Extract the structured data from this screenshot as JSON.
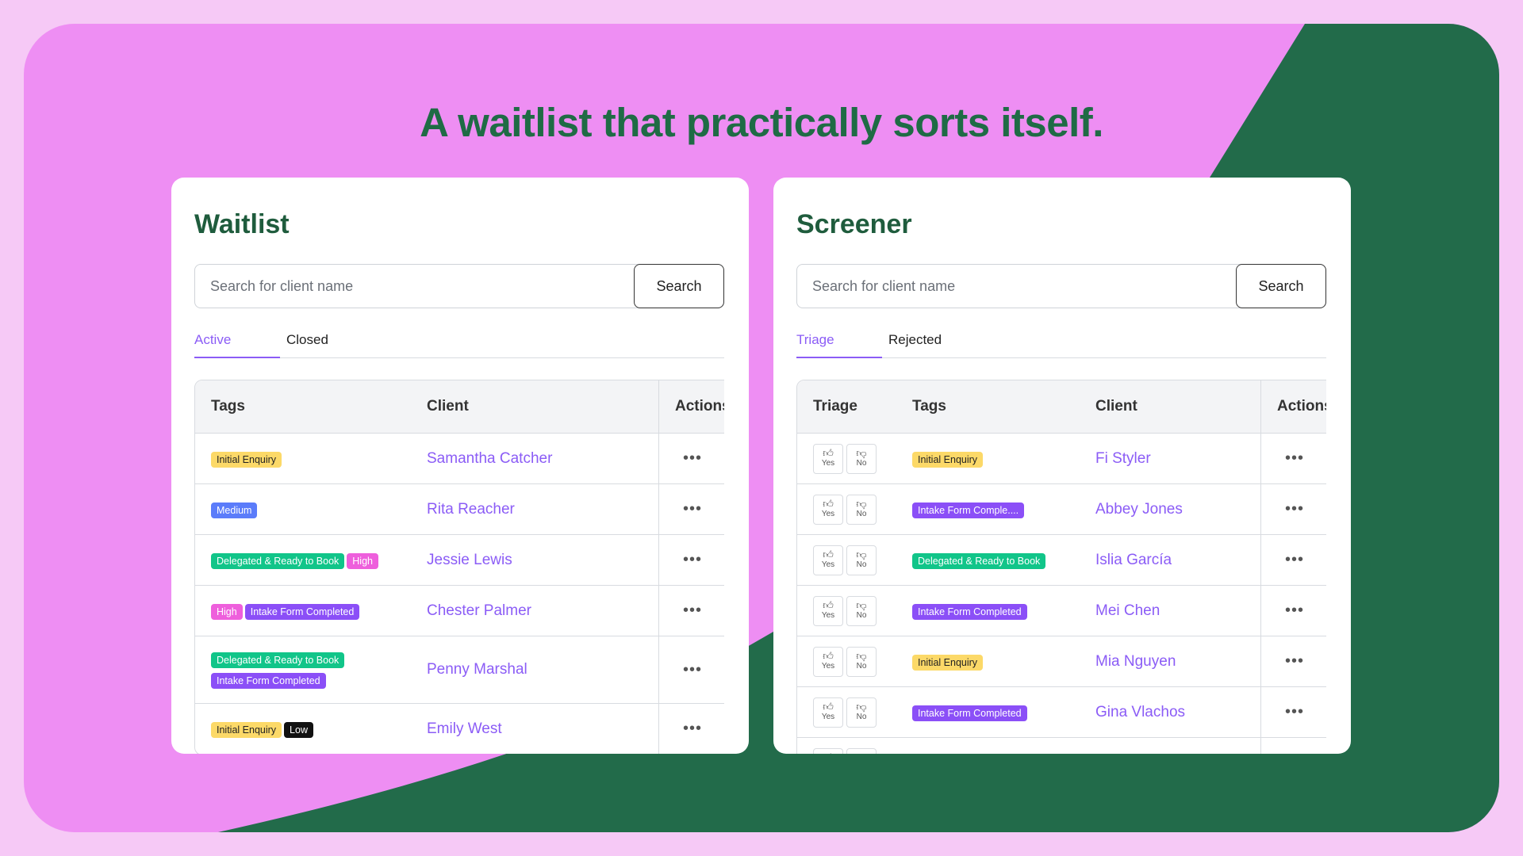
{
  "headline": "A waitlist that practically sorts itself.",
  "colors": {
    "page_bg": "#f6c9f6",
    "pink": "#ee8ef3",
    "green": "#226b4a",
    "accent": "#8b5cf6"
  },
  "waitlist": {
    "title": "Waitlist",
    "search_placeholder": "Search for client name",
    "search_label": "Search",
    "tabs": [
      {
        "label": "Active",
        "active": true
      },
      {
        "label": "Closed",
        "active": false
      }
    ],
    "columns": [
      "Tags",
      "Client",
      "Actions"
    ],
    "rows": [
      {
        "tags": [
          {
            "label": "Initial Enquiry",
            "color": "yellow"
          }
        ],
        "client": "Samantha Catcher"
      },
      {
        "tags": [
          {
            "label": "Medium",
            "color": "blue"
          }
        ],
        "client": "Rita Reacher"
      },
      {
        "tags": [
          {
            "label": "Delegated & Ready to Book",
            "color": "green"
          },
          {
            "label": "High",
            "color": "pink"
          }
        ],
        "client": "Jessie Lewis"
      },
      {
        "tags": [
          {
            "label": "High",
            "color": "pink"
          },
          {
            "label": "Intake Form Completed",
            "color": "purple"
          }
        ],
        "client": "Chester Palmer"
      },
      {
        "tags": [
          {
            "label": "Delegated & Ready to Book",
            "color": "green"
          },
          {
            "label": "Intake Form Completed",
            "color": "purple"
          }
        ],
        "client": "Penny Marshal",
        "wrap": true
      },
      {
        "tags": [
          {
            "label": "Initial Enquiry",
            "color": "yellow"
          },
          {
            "label": "Low",
            "color": "black"
          }
        ],
        "client": "Emily West"
      }
    ]
  },
  "screener": {
    "title": "Screener",
    "search_placeholder": "Search for client name",
    "search_label": "Search",
    "tabs": [
      {
        "label": "Triage",
        "active": true
      },
      {
        "label": "Rejected",
        "active": false
      }
    ],
    "columns": [
      "Triage",
      "Tags",
      "Client",
      "Actions"
    ],
    "yes_label": "Yes",
    "no_label": "No",
    "rows": [
      {
        "tags": [
          {
            "label": "Initial Enquiry",
            "color": "yellow"
          }
        ],
        "client": "Fi Styler"
      },
      {
        "tags": [
          {
            "label": "Intake Form Comple....",
            "color": "purple"
          }
        ],
        "client": "Abbey Jones"
      },
      {
        "tags": [
          {
            "label": "Delegated & Ready to Book",
            "color": "green"
          }
        ],
        "client": "Islia García"
      },
      {
        "tags": [
          {
            "label": "Intake Form Completed",
            "color": "purple"
          }
        ],
        "client": "Mei Chen"
      },
      {
        "tags": [
          {
            "label": "Initial Enquiry",
            "color": "yellow"
          }
        ],
        "client": "Mia Nguyen"
      },
      {
        "tags": [
          {
            "label": "Intake Form Completed",
            "color": "purple"
          }
        ],
        "client": "Gina Vlachos"
      },
      {
        "tags": [
          {
            "label": "",
            "color": "blue"
          }
        ],
        "client": ""
      }
    ]
  }
}
